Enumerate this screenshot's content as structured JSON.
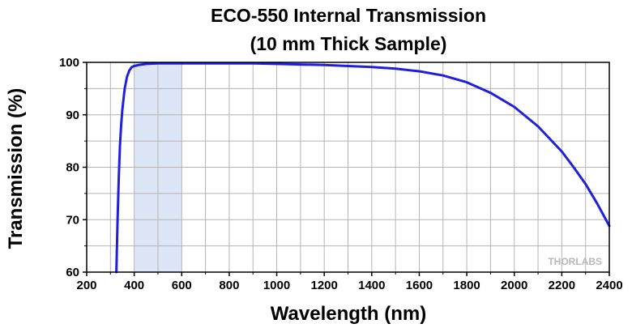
{
  "chart_data": {
    "type": "line",
    "title": [
      "ECO-550 Internal Transmission",
      "(10 mm Thick Sample)"
    ],
    "xlabel": "Wavelength (nm)",
    "ylabel": "Transmission (%)",
    "xlim": [
      200,
      2400
    ],
    "ylim": [
      60,
      100
    ],
    "xticks": [
      200,
      400,
      600,
      800,
      1000,
      1200,
      1400,
      1600,
      1800,
      2000,
      2200,
      2400
    ],
    "yticks": [
      60,
      70,
      80,
      90,
      100
    ],
    "grid": true,
    "highlight_band": {
      "x": [
        400,
        600
      ],
      "color": "#dce6f7"
    },
    "line_color": "#1f1fe0",
    "watermark": "THORLABS",
    "series": [
      {
        "x": [
          325,
          330,
          335,
          340,
          345,
          350,
          360,
          370,
          380,
          390,
          400,
          420,
          450,
          500,
          600,
          700,
          800,
          900,
          1000,
          1100,
          1200,
          1300,
          1400,
          1500,
          1600,
          1700,
          1800,
          1900,
          2000,
          2100,
          2200,
          2250,
          2300,
          2350,
          2400
        ],
        "y": [
          60,
          70,
          78,
          84,
          88,
          91,
          95,
          97.3,
          98.5,
          99.1,
          99.3,
          99.5,
          99.7,
          99.8,
          99.8,
          99.8,
          99.8,
          99.8,
          99.7,
          99.6,
          99.5,
          99.3,
          99.1,
          98.8,
          98.3,
          97.5,
          96.2,
          94.2,
          91.5,
          87.8,
          83.0,
          80.0,
          76.8,
          73.0,
          68.8
        ]
      }
    ]
  }
}
